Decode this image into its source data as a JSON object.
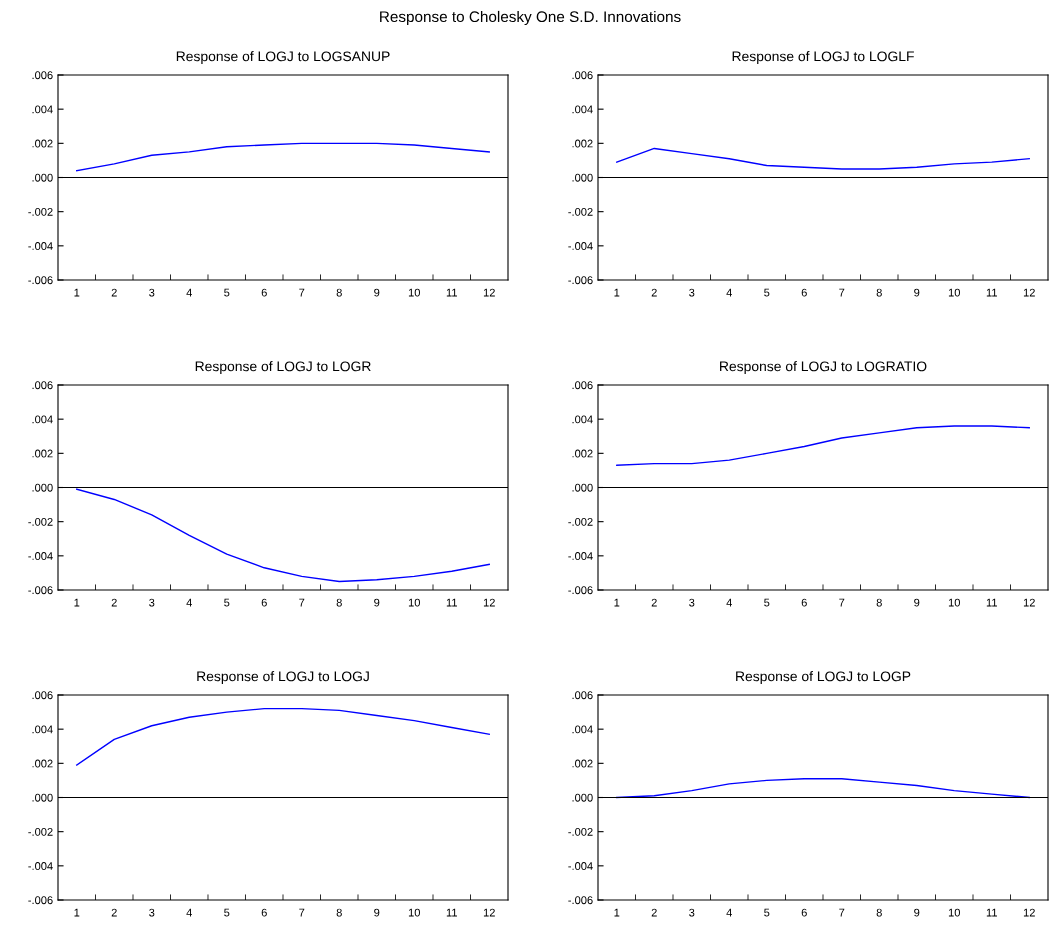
{
  "chart_data": [
    {
      "type": "line",
      "title": "Response of LOGJ to LOGSANUP",
      "categories": [
        "1",
        "2",
        "3",
        "4",
        "5",
        "6",
        "7",
        "8",
        "9",
        "10",
        "11",
        "12"
      ],
      "series": [
        {
          "color": "#0000ff",
          "values": [
            0.0004,
            0.0008,
            0.0013,
            0.0015,
            0.0018,
            0.0019,
            0.002,
            0.002,
            0.002,
            0.0019,
            0.0017,
            0.0015
          ]
        }
      ],
      "ylim": [
        -0.006,
        0.006
      ],
      "yticks": [
        {
          "value": -0.006,
          "label": "-.006"
        },
        {
          "value": -0.004,
          "label": "-.004"
        },
        {
          "value": -0.002,
          "label": "-.002"
        },
        {
          "value": 0,
          "label": ".000"
        },
        {
          "value": 0.002,
          "label": ".002"
        },
        {
          "value": 0.004,
          "label": ".004"
        },
        {
          "value": 0.006,
          "label": ".006"
        }
      ],
      "ref_lines": [
        {
          "axis": "y",
          "value": 0,
          "color": "#000000"
        }
      ],
      "annotations": [
        "Response to Cholesky One S.D. Innovations"
      ]
    },
    {
      "type": "line",
      "title": "Response of LOGJ to LOGLF",
      "categories": [
        "1",
        "2",
        "3",
        "4",
        "5",
        "6",
        "7",
        "8",
        "9",
        "10",
        "11",
        "12"
      ],
      "series": [
        {
          "color": "#0000ff",
          "values": [
            0.0009,
            0.0017,
            0.0014,
            0.0011,
            0.0007,
            0.0006,
            0.0005,
            0.0005,
            0.0006,
            0.0008,
            0.0009,
            0.0011
          ]
        }
      ],
      "ylim": [
        -0.006,
        0.006
      ],
      "yticks": [
        {
          "value": -0.006,
          "label": "-.006"
        },
        {
          "value": -0.004,
          "label": "-.004"
        },
        {
          "value": -0.002,
          "label": "-.002"
        },
        {
          "value": 0,
          "label": ".000"
        },
        {
          "value": 0.002,
          "label": ".002"
        },
        {
          "value": 0.004,
          "label": ".004"
        },
        {
          "value": 0.006,
          "label": ".006"
        }
      ],
      "ref_lines": [
        {
          "axis": "y",
          "value": 0,
          "color": "#000000"
        }
      ]
    },
    {
      "type": "line",
      "title": "Response of LOGJ to LOGR",
      "categories": [
        "1",
        "2",
        "3",
        "4",
        "5",
        "6",
        "7",
        "8",
        "9",
        "10",
        "11",
        "12"
      ],
      "series": [
        {
          "color": "#0000ff",
          "values": [
            -0.0001,
            -0.0007,
            -0.0016,
            -0.0028,
            -0.0039,
            -0.0047,
            -0.0052,
            -0.0055,
            -0.0054,
            -0.0052,
            -0.0049,
            -0.0045
          ]
        }
      ],
      "ylim": [
        -0.006,
        0.006
      ],
      "yticks": [
        {
          "value": -0.006,
          "label": "-.006"
        },
        {
          "value": -0.004,
          "label": "-.004"
        },
        {
          "value": -0.002,
          "label": "-.002"
        },
        {
          "value": 0,
          "label": ".000"
        },
        {
          "value": 0.002,
          "label": ".002"
        },
        {
          "value": 0.004,
          "label": ".004"
        },
        {
          "value": 0.006,
          "label": ".006"
        }
      ],
      "ref_lines": [
        {
          "axis": "y",
          "value": 0,
          "color": "#000000"
        }
      ]
    },
    {
      "type": "line",
      "title": "Response of LOGJ to LOGRATIO",
      "categories": [
        "1",
        "2",
        "3",
        "4",
        "5",
        "6",
        "7",
        "8",
        "9",
        "10",
        "11",
        "12"
      ],
      "series": [
        {
          "color": "#0000ff",
          "values": [
            0.0013,
            0.0014,
            0.0014,
            0.0016,
            0.002,
            0.0024,
            0.0029,
            0.0032,
            0.0035,
            0.0036,
            0.0036,
            0.0035
          ]
        }
      ],
      "ylim": [
        -0.006,
        0.006
      ],
      "yticks": [
        {
          "value": -0.006,
          "label": "-.006"
        },
        {
          "value": -0.004,
          "label": "-.004"
        },
        {
          "value": -0.002,
          "label": "-.002"
        },
        {
          "value": 0,
          "label": ".000"
        },
        {
          "value": 0.002,
          "label": ".002"
        },
        {
          "value": 0.004,
          "label": ".004"
        },
        {
          "value": 0.006,
          "label": ".006"
        }
      ],
      "ref_lines": [
        {
          "axis": "y",
          "value": 0,
          "color": "#000000"
        }
      ]
    },
    {
      "type": "line",
      "title": "Response of LOGJ to LOGJ",
      "categories": [
        "1",
        "2",
        "3",
        "4",
        "5",
        "6",
        "7",
        "8",
        "9",
        "10",
        "11",
        "12"
      ],
      "series": [
        {
          "color": "#0000ff",
          "values": [
            0.0019,
            0.0034,
            0.0042,
            0.0047,
            0.005,
            0.0052,
            0.0052,
            0.0051,
            0.0048,
            0.0045,
            0.0041,
            0.0037
          ]
        }
      ],
      "ylim": [
        -0.006,
        0.006
      ],
      "yticks": [
        {
          "value": -0.006,
          "label": "-.006"
        },
        {
          "value": -0.004,
          "label": "-.004"
        },
        {
          "value": -0.002,
          "label": "-.002"
        },
        {
          "value": 0,
          "label": ".000"
        },
        {
          "value": 0.002,
          "label": ".002"
        },
        {
          "value": 0.004,
          "label": ".004"
        },
        {
          "value": 0.006,
          "label": ".006"
        }
      ],
      "ref_lines": [
        {
          "axis": "y",
          "value": 0,
          "color": "#000000"
        }
      ]
    },
    {
      "type": "line",
      "title": "Response of LOGJ to LOGP",
      "categories": [
        "1",
        "2",
        "3",
        "4",
        "5",
        "6",
        "7",
        "8",
        "9",
        "10",
        "11",
        "12"
      ],
      "series": [
        {
          "color": "#0000ff",
          "values": [
            0.0,
            0.0001,
            0.0004,
            0.0008,
            0.001,
            0.0011,
            0.0011,
            0.0009,
            0.0007,
            0.0004,
            0.0002,
            0.0
          ]
        }
      ],
      "ylim": [
        -0.006,
        0.006
      ],
      "yticks": [
        {
          "value": -0.006,
          "label": "-.006"
        },
        {
          "value": -0.004,
          "label": "-.004"
        },
        {
          "value": -0.002,
          "label": "-.002"
        },
        {
          "value": 0,
          "label": ".000"
        },
        {
          "value": 0.002,
          "label": ".002"
        },
        {
          "value": 0.004,
          "label": ".004"
        },
        {
          "value": 0.006,
          "label": ".006"
        }
      ],
      "ref_lines": [
        {
          "axis": "y",
          "value": 0,
          "color": "#000000"
        }
      ]
    }
  ]
}
